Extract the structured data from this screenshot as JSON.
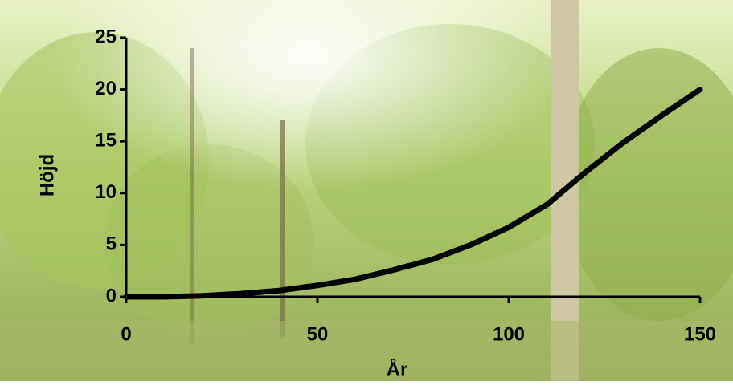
{
  "chart_data": {
    "type": "line",
    "xlabel": "År",
    "ylabel": "Höjd",
    "x": [
      0,
      10,
      20,
      30,
      40,
      50,
      60,
      70,
      80,
      90,
      100,
      110,
      120,
      130,
      140,
      150
    ],
    "series": [
      {
        "name": "Höjd",
        "color": "#000000",
        "values": [
          0,
          0,
          0.1,
          0.3,
          0.6,
          1.1,
          1.7,
          2.6,
          3.6,
          5,
          6.7,
          8.9,
          12,
          14.9,
          17.5,
          20
        ]
      }
    ],
    "xlim": [
      0,
      150
    ],
    "xticks": [
      0,
      50,
      100,
      150
    ],
    "ylim": [
      0,
      25
    ],
    "yticks": [
      0,
      5,
      10,
      15,
      20,
      25
    ]
  }
}
